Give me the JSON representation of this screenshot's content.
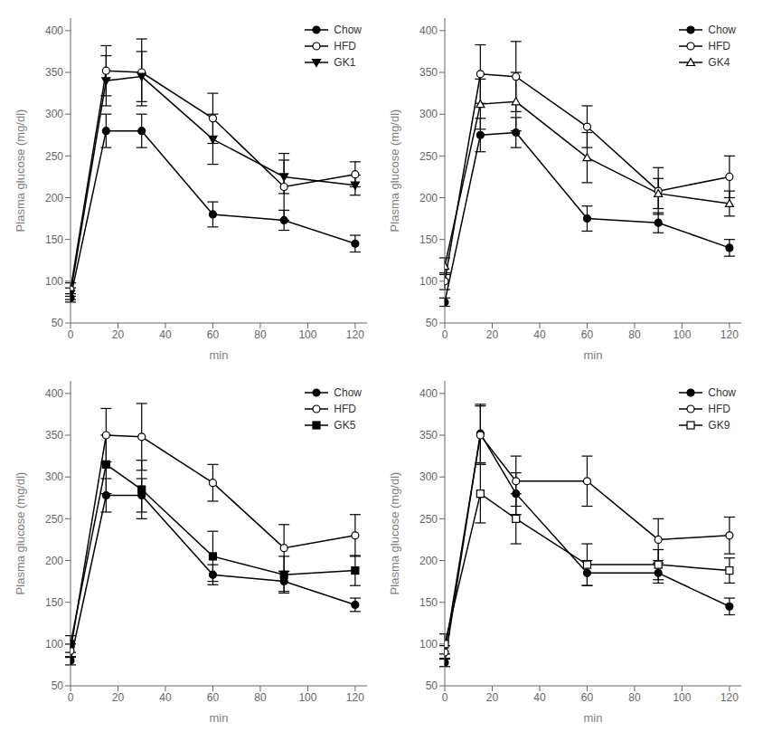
{
  "chart_data": [
    {
      "type": "line",
      "x": [
        0,
        15,
        30,
        60,
        90,
        120
      ],
      "xlabel": "min",
      "ylabel": "Plasma glucose (mg/dl)",
      "xlim": [
        0,
        125
      ],
      "ylim": [
        50,
        415
      ],
      "xticks": [
        0,
        20,
        40,
        60,
        80,
        100,
        120
      ],
      "yticks": [
        50,
        100,
        150,
        200,
        250,
        300,
        350,
        400
      ],
      "legend": "upper right",
      "grid": false,
      "series": [
        {
          "name": "Chow",
          "color": "#000000",
          "marker": "circle",
          "values": [
            80,
            280,
            280,
            180,
            173,
            145
          ],
          "errors": [
            5,
            20,
            20,
            15,
            12,
            10
          ]
        },
        {
          "name": "HFD",
          "color": "#000000",
          "marker": "circle-open",
          "values": [
            90,
            352,
            350,
            295,
            213,
            228
          ],
          "errors": [
            8,
            30,
            40,
            30,
            40,
            15
          ]
        },
        {
          "name": "GK1",
          "color": "#000000",
          "marker": "triangle-down",
          "values": [
            85,
            340,
            345,
            270,
            225,
            215
          ],
          "errors": [
            7,
            30,
            30,
            30,
            20,
            12
          ]
        }
      ]
    },
    {
      "type": "line",
      "x": [
        0,
        15,
        30,
        60,
        90,
        120
      ],
      "xlabel": "min",
      "ylabel": "Plasma glucose (mg/dl)",
      "xlim": [
        0,
        125
      ],
      "ylim": [
        50,
        415
      ],
      "xticks": [
        0,
        20,
        40,
        60,
        80,
        100,
        120
      ],
      "yticks": [
        50,
        100,
        150,
        200,
        250,
        300,
        350,
        400
      ],
      "legend": "upper right",
      "grid": false,
      "series": [
        {
          "name": "Chow",
          "color": "#000000",
          "marker": "circle",
          "values": [
            75,
            275,
            278,
            175,
            170,
            140
          ],
          "errors": [
            5,
            20,
            18,
            15,
            12,
            10
          ]
        },
        {
          "name": "HFD",
          "color": "#000000",
          "marker": "circle-open",
          "values": [
            100,
            348,
            345,
            285,
            208,
            225
          ],
          "errors": [
            10,
            35,
            42,
            25,
            28,
            25
          ]
        },
        {
          "name": "GK4",
          "color": "#000000",
          "marker": "triangle-up-open",
          "values": [
            118,
            312,
            315,
            248,
            205,
            193
          ],
          "errors": [
            10,
            30,
            35,
            30,
            18,
            15
          ]
        }
      ]
    },
    {
      "type": "line",
      "x": [
        0,
        15,
        30,
        60,
        90,
        120
      ],
      "xlabel": "min",
      "ylabel": "Plasma glucose (mg/dl)",
      "xlim": [
        0,
        125
      ],
      "ylim": [
        50,
        415
      ],
      "xticks": [
        0,
        20,
        40,
        60,
        80,
        100,
        120
      ],
      "yticks": [
        50,
        100,
        150,
        200,
        250,
        300,
        350,
        400
      ],
      "legend": "upper right",
      "grid": false,
      "series": [
        {
          "name": "Chow",
          "color": "#000000",
          "marker": "circle",
          "values": [
            80,
            278,
            278,
            183,
            175,
            147
          ],
          "errors": [
            5,
            20,
            20,
            12,
            12,
            8
          ]
        },
        {
          "name": "HFD",
          "color": "#000000",
          "marker": "circle-open",
          "values": [
            92,
            350,
            348,
            293,
            215,
            230
          ],
          "errors": [
            8,
            32,
            40,
            22,
            28,
            25
          ]
        },
        {
          "name": "GK5",
          "color": "#000000",
          "marker": "square",
          "values": [
            100,
            315,
            285,
            205,
            183,
            188
          ],
          "errors": [
            10,
            35,
            35,
            30,
            22,
            18
          ]
        }
      ]
    },
    {
      "type": "line",
      "x": [
        0,
        15,
        30,
        60,
        90,
        120
      ],
      "xlabel": "min",
      "ylabel": "Plasma glucose (mg/dl)",
      "xlim": [
        0,
        125
      ],
      "ylim": [
        50,
        415
      ],
      "xticks": [
        0,
        20,
        40,
        60,
        80,
        100,
        120
      ],
      "yticks": [
        50,
        100,
        150,
        200,
        250,
        300,
        350,
        400
      ],
      "legend": "upper right",
      "grid": false,
      "series": [
        {
          "name": "Chow",
          "color": "#000000",
          "marker": "circle",
          "values": [
            78,
            352,
            280,
            185,
            185,
            145
          ],
          "errors": [
            5,
            35,
            25,
            15,
            12,
            10
          ]
        },
        {
          "name": "HFD",
          "color": "#000000",
          "marker": "circle-open",
          "values": [
            90,
            350,
            295,
            295,
            225,
            230
          ],
          "errors": [
            8,
            35,
            30,
            30,
            25,
            22
          ]
        },
        {
          "name": "GK9",
          "color": "#000000",
          "marker": "square-open",
          "values": [
            100,
            280,
            250,
            195,
            195,
            188
          ],
          "errors": [
            12,
            35,
            30,
            25,
            18,
            15
          ]
        }
      ]
    }
  ]
}
